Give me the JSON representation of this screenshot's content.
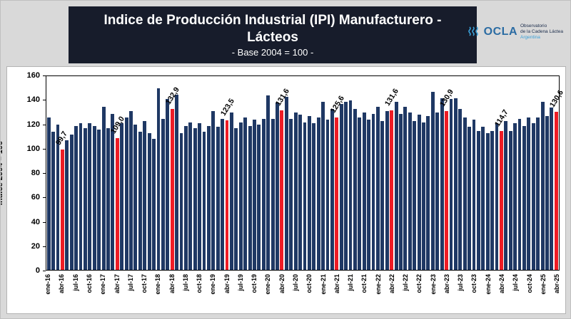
{
  "header": {
    "title_line1": "Indice de Producción Industrial (IPI) Manufacturero -",
    "title_line2": "Lácteos",
    "subtitle": "- Base 2004 = 100 -"
  },
  "logo": {
    "name": "OCLA",
    "caption_line1": "Observatorio",
    "caption_line2": "de la Cadena Láctea",
    "caption_line3": "Argentina"
  },
  "chart_data": {
    "type": "bar",
    "title": "Indice de Producción Industrial (IPI) Manufacturero - Lácteos",
    "subtitle": "- Base 2004 = 100 -",
    "ylabel": "indice 2004 = 100",
    "xlabel": "",
    "ylim": [
      0,
      160
    ],
    "yticks": [
      0,
      20,
      40,
      60,
      80,
      100,
      120,
      140,
      160
    ],
    "grid": false,
    "legend": "none",
    "bar_color": "#1f3864",
    "highlight_color": "#ee1c25",
    "xtick_every": 3,
    "categories": [
      "ene-16",
      "feb-16",
      "mar-16",
      "abr-16",
      "may-16",
      "jun-16",
      "jul-16",
      "ago-16",
      "sep-16",
      "oct-16",
      "nov-16",
      "dic-16",
      "ene-17",
      "feb-17",
      "mar-17",
      "abr-17",
      "may-17",
      "jun-17",
      "jul-17",
      "ago-17",
      "sep-17",
      "oct-17",
      "nov-17",
      "dic-17",
      "ene-18",
      "feb-18",
      "mar-18",
      "abr-18",
      "may-18",
      "jun-18",
      "jul-18",
      "ago-18",
      "sep-18",
      "oct-18",
      "nov-18",
      "dic-18",
      "ene-19",
      "feb-19",
      "mar-19",
      "abr-19",
      "may-19",
      "jun-19",
      "jul-19",
      "ago-19",
      "sep-19",
      "oct-19",
      "nov-19",
      "dic-19",
      "ene-20",
      "feb-20",
      "mar-20",
      "abr-20",
      "may-20",
      "jun-20",
      "jul-20",
      "ago-20",
      "sep-20",
      "oct-20",
      "nov-20",
      "dic-20",
      "ene-21",
      "feb-21",
      "mar-21",
      "abr-21",
      "may-21",
      "jun-21",
      "jul-21",
      "ago-21",
      "sep-21",
      "oct-21",
      "nov-21",
      "dic-21",
      "ene-22",
      "feb-22",
      "mar-22",
      "abr-22",
      "may-22",
      "jun-22",
      "jul-22",
      "ago-22",
      "sep-22",
      "oct-22",
      "nov-22",
      "dic-22",
      "ene-23",
      "feb-23",
      "mar-23",
      "abr-23",
      "may-23",
      "jun-23",
      "jul-23",
      "ago-23",
      "sep-23",
      "oct-23",
      "nov-23",
      "dic-23",
      "ene-24",
      "feb-24",
      "mar-24",
      "abr-24",
      "may-24",
      "jun-24",
      "jul-24",
      "ago-24",
      "sep-24",
      "oct-24",
      "nov-24",
      "dic-24",
      "ene-25",
      "feb-25",
      "mar-25",
      "abr-25"
    ],
    "values": [
      126,
      114,
      120,
      99.7,
      107,
      112,
      119,
      121,
      117,
      121,
      119,
      116,
      135,
      117,
      129,
      109.0,
      121,
      126,
      131,
      120,
      114,
      123,
      113,
      108,
      150,
      125,
      141,
      132.9,
      145,
      113,
      119,
      122,
      117,
      121,
      114,
      119,
      131,
      118,
      125,
      123.5,
      130,
      117,
      122,
      126,
      119,
      124,
      120,
      125,
      144,
      125,
      138,
      131.6,
      143,
      125,
      130,
      128,
      122,
      127,
      121,
      126,
      139,
      124,
      133,
      125.6,
      137,
      139,
      140,
      133,
      126,
      130,
      124,
      129,
      135,
      123,
      131,
      131.6,
      139,
      129,
      135,
      130,
      123,
      128,
      122,
      127,
      147,
      130,
      142,
      130.9,
      141,
      142,
      133,
      126,
      118,
      124,
      115,
      118,
      113,
      115,
      121,
      114.7,
      123,
      115,
      121,
      125,
      119,
      126,
      121,
      126,
      139,
      127,
      134,
      130.6
    ],
    "highlight_indices": [
      3,
      15,
      27,
      39,
      51,
      63,
      75,
      87,
      99,
      111
    ],
    "annotations": {
      "3": "99,7",
      "15": "109,0",
      "27": "132,9",
      "39": "123,5",
      "51": "131,6",
      "63": "125,6",
      "75": "131,6",
      "87": "130,9",
      "99": "114,7",
      "111": "130,6"
    }
  }
}
